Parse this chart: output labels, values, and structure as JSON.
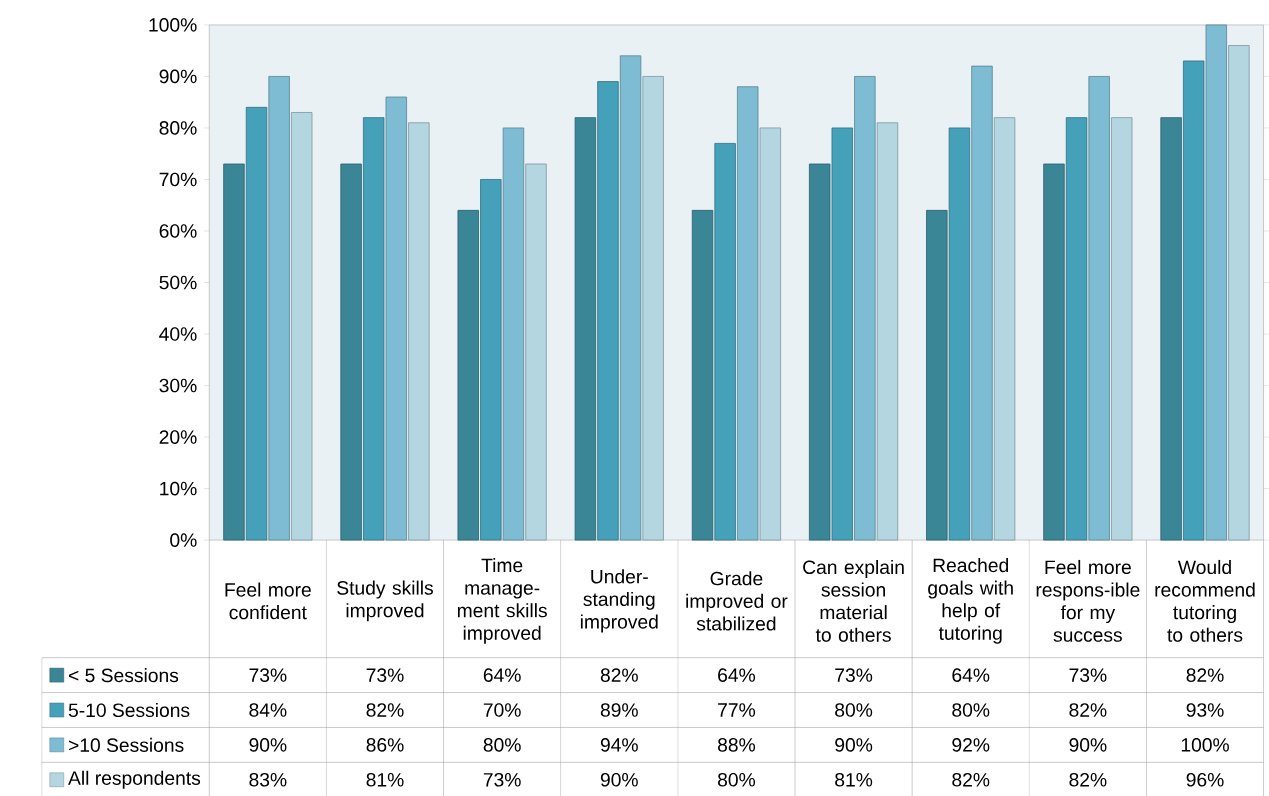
{
  "chart_data": {
    "type": "bar",
    "categories": [
      "Feel more confident",
      "Study skills improved",
      "Time manage-ment skills improved",
      "Under-standing improved",
      "Grade improved or stabilized",
      "Can explain session material to others",
      "Reached goals with help of tutoring",
      "Feel more respons-ible for my success",
      "Would recommend tutoring to others"
    ],
    "series": [
      {
        "name": "< 5 Sessions",
        "color": "#3a8697",
        "values": [
          73,
          73,
          64,
          82,
          64,
          73,
          64,
          73,
          82
        ],
        "value_labels": [
          "73%",
          "73%",
          "64%",
          "82%",
          "64%",
          "73%",
          "64%",
          "73%",
          "82%"
        ]
      },
      {
        "name": "5-10 Sessions",
        "color": "#45a0b9",
        "values": [
          84,
          82,
          70,
          89,
          77,
          80,
          80,
          82,
          93
        ],
        "value_labels": [
          "84%",
          "82%",
          "70%",
          "89%",
          "77%",
          "80%",
          "80%",
          "82%",
          "93%"
        ]
      },
      {
        "name": ">10 Sessions",
        "color": "#7dbcd2",
        "values": [
          90,
          86,
          80,
          94,
          88,
          90,
          92,
          90,
          100
        ],
        "value_labels": [
          "90%",
          "86%",
          "80%",
          "94%",
          "88%",
          "90%",
          "92%",
          "90%",
          "100%"
        ]
      },
      {
        "name": "All respondents",
        "color": "#b3d6e1",
        "values": [
          83,
          81,
          73,
          90,
          80,
          81,
          82,
          82,
          96
        ],
        "value_labels": [
          "83%",
          "81%",
          "73%",
          "90%",
          "80%",
          "81%",
          "82%",
          "82%",
          "96%"
        ]
      }
    ],
    "ylim": [
      0,
      100
    ],
    "yticks": [
      {
        "value": 0,
        "label": "0%"
      },
      {
        "value": 10,
        "label": "10%"
      },
      {
        "value": 20,
        "label": "20%"
      },
      {
        "value": 30,
        "label": "30%"
      },
      {
        "value": 40,
        "label": "40%"
      },
      {
        "value": 50,
        "label": "50%"
      },
      {
        "value": 60,
        "label": "60%"
      },
      {
        "value": 70,
        "label": "70%"
      },
      {
        "value": 80,
        "label": "80%"
      },
      {
        "value": 90,
        "label": "90%"
      },
      {
        "value": 100,
        "label": "100%"
      }
    ],
    "legend": "bottom left"
  }
}
